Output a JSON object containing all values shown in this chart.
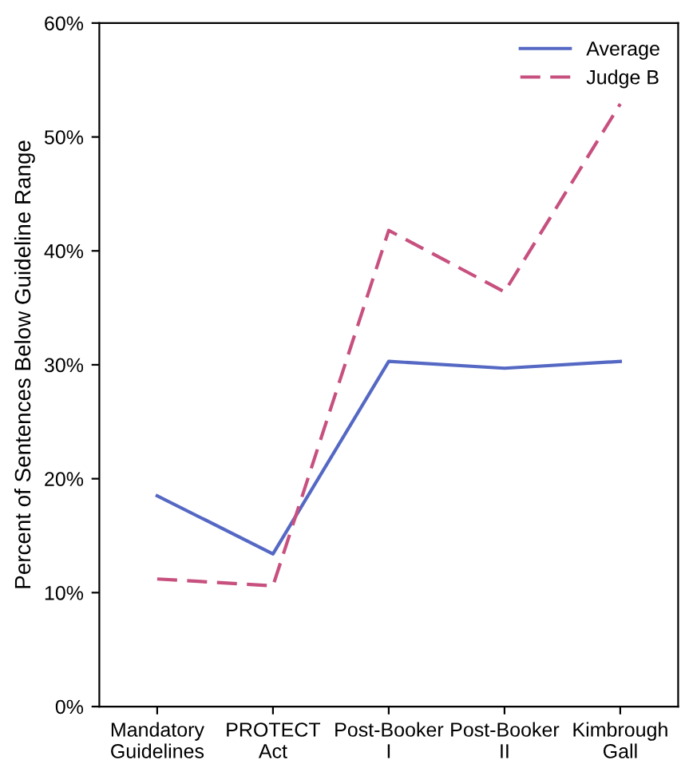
{
  "chart_data": {
    "type": "line",
    "ylabel": "Percent of Sentences Below Guideline Range",
    "categories": [
      "Mandatory\nGuidelines",
      "PROTECT\nAct",
      "Post-Booker\nI",
      "Post-Booker\nII",
      "Kimbrough\nGall"
    ],
    "series": [
      {
        "name": "Average",
        "color": "#5468c4",
        "line_style": "solid",
        "values": [
          18.5,
          13.4,
          30.3,
          29.7,
          30.3
        ]
      },
      {
        "name": "Judge B",
        "color": "#c7507f",
        "line_style": "dashed",
        "values": [
          11.2,
          10.6,
          41.8,
          36.4,
          52.9
        ]
      }
    ],
    "ylim": [
      0,
      60
    ],
    "yticks": [
      {
        "value": 0,
        "label": "0%"
      },
      {
        "value": 10,
        "label": "10%"
      },
      {
        "value": 20,
        "label": "20%"
      },
      {
        "value": 30,
        "label": "30%"
      },
      {
        "value": 40,
        "label": "40%"
      },
      {
        "value": 50,
        "label": "50%"
      },
      {
        "value": 60,
        "label": "60%"
      }
    ],
    "grid": false,
    "legend": "top right"
  }
}
